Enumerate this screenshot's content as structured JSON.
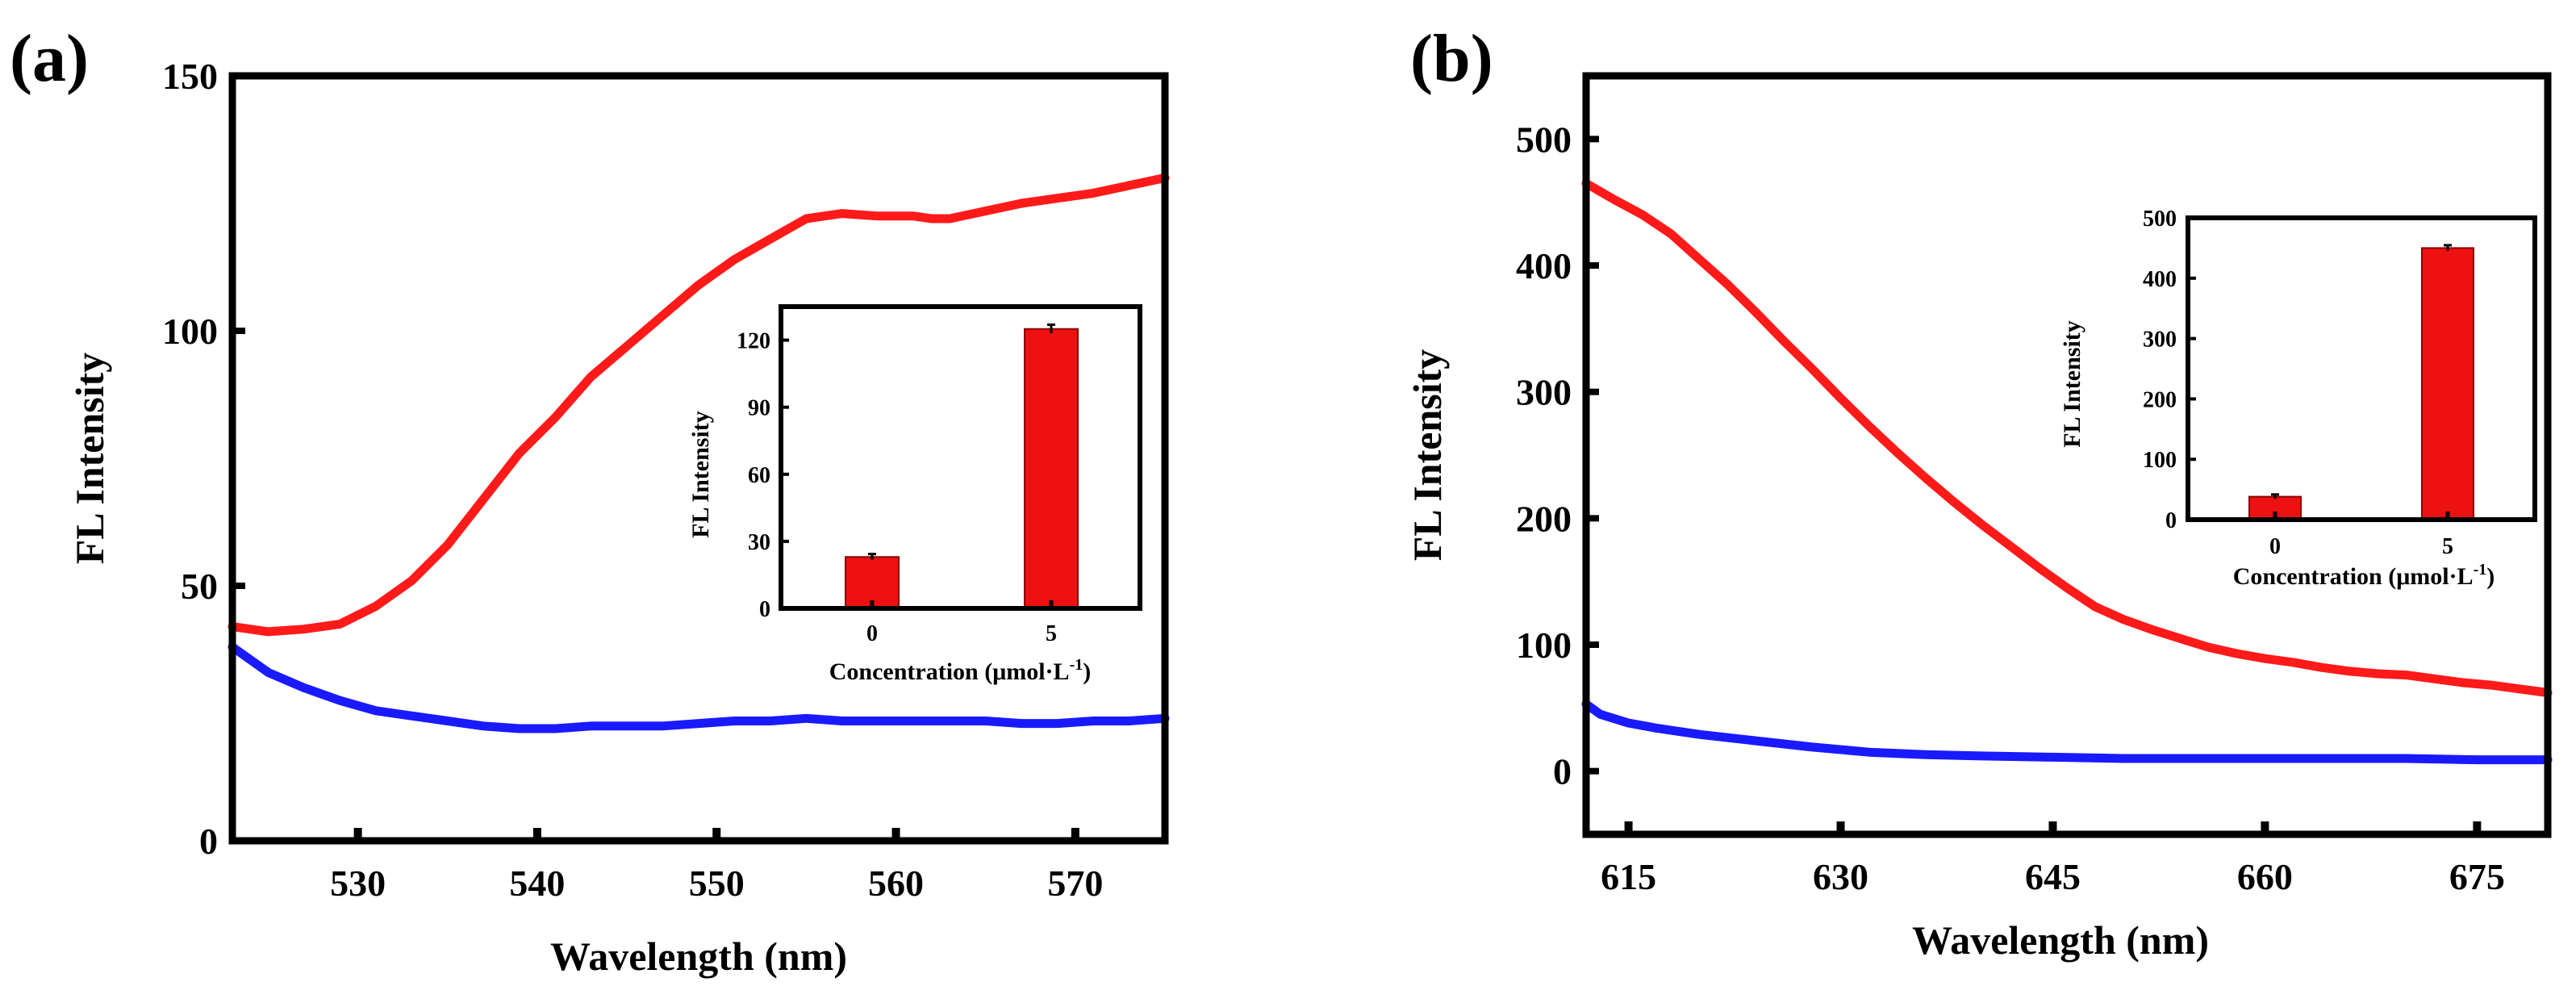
{
  "panels": [
    {
      "label": "(a)",
      "chart_data": {
        "type": "line",
        "xlabel": "Wavelength (nm)",
        "ylabel": "FL Intensity",
        "xlim": [
          523,
          575
        ],
        "ylim": [
          0,
          150
        ],
        "x_ticks": [
          530,
          540,
          550,
          560,
          570
        ],
        "y_ticks": [
          0,
          50,
          100,
          150
        ],
        "series": [
          {
            "name": "red",
            "color": "#ff1a1a",
            "x": [
              523,
              525,
              527,
              529,
              531,
              533,
              535,
              537,
              539,
              541,
              543,
              545,
              547,
              549,
              551,
              553,
              555,
              557,
              559,
              561,
              562,
              563,
              565,
              567,
              569,
              571,
              573,
              575
            ],
            "y": [
              42,
              41,
              41.5,
              42.5,
              46,
              51,
              58,
              67,
              76,
              83,
              91,
              97,
              103,
              109,
              114,
              118,
              122,
              123,
              122.5,
              122.5,
              122,
              122,
              123.5,
              125,
              126,
              127,
              128.5,
              130
            ]
          },
          {
            "name": "blue",
            "color": "#1a1aff",
            "x": [
              523,
              525,
              527,
              529,
              531,
              533,
              535,
              537,
              539,
              541,
              543,
              545,
              547,
              549,
              551,
              553,
              555,
              557,
              559,
              561,
              563,
              565,
              567,
              569,
              571,
              573,
              575
            ],
            "y": [
              38,
              33,
              30,
              27.5,
              25.5,
              24.5,
              23.5,
              22.5,
              22,
              22,
              22.5,
              22.5,
              22.5,
              23,
              23.5,
              23.5,
              24,
              23.5,
              23.5,
              23.5,
              23.5,
              23.5,
              23,
              23,
              23.5,
              23.5,
              24
            ]
          }
        ],
        "inset": {
          "type": "bar",
          "xlabel": "Concentration (μmol·L",
          "xlabel_sup": "-1",
          "xlabel_end": ")",
          "ylabel": "FL Intensity",
          "categories": [
            "0",
            "5"
          ],
          "values": [
            23,
            125
          ],
          "errors": [
            0.6,
            1.2
          ],
          "ylim": [
            0,
            135
          ],
          "y_ticks": [
            0,
            30,
            60,
            90,
            120
          ]
        }
      }
    },
    {
      "label": "(b)",
      "chart_data": {
        "type": "line",
        "xlabel": "Wavelength (nm)",
        "ylabel": "FL Intensity",
        "xlim": [
          612,
          680
        ],
        "ylim": [
          -50,
          550
        ],
        "x_ticks": [
          615,
          630,
          645,
          660,
          675
        ],
        "y_ticks": [
          0,
          100,
          200,
          300,
          400,
          500
        ],
        "series": [
          {
            "name": "red",
            "color": "#ff1a1a",
            "x": [
              612,
              614,
              616,
              618,
              620,
              622,
              624,
              626,
              628,
              630,
              632,
              634,
              636,
              638,
              640,
              642,
              644,
              646,
              648,
              650,
              652,
              654,
              656,
              658,
              660,
              662,
              664,
              666,
              668,
              670,
              672,
              674,
              676,
              678,
              680
            ],
            "y": [
              465,
              452,
              440,
              425,
              405,
              385,
              363,
              340,
              318,
              295,
              273,
              252,
              232,
              213,
              195,
              178,
              161,
              145,
              130,
              120,
              112,
              105,
              98,
              93,
              89,
              86,
              82,
              79,
              77,
              76,
              73,
              70,
              68,
              65,
              62
            ]
          },
          {
            "name": "blue",
            "color": "#1a1aff",
            "x": [
              612,
              613,
              615,
              617,
              620,
              624,
              628,
              632,
              636,
              640,
              645,
              650,
              655,
              660,
              665,
              670,
              675,
              680
            ],
            "y": [
              53,
              45,
              38,
              34,
              29,
              24,
              19,
              15,
              13,
              12,
              11,
              10,
              10,
              10,
              10,
              10,
              9,
              9
            ]
          }
        ],
        "inset": {
          "type": "bar",
          "xlabel": "Concentration (μmol·L",
          "xlabel_sup": "-1",
          "xlabel_end": ")",
          "ylabel": "FL Intensity",
          "categories": [
            "0",
            "5"
          ],
          "values": [
            38,
            450
          ],
          "errors": [
            1,
            2
          ],
          "ylim": [
            0,
            500
          ],
          "y_ticks": [
            0,
            100,
            200,
            300,
            400,
            500
          ]
        }
      }
    }
  ]
}
